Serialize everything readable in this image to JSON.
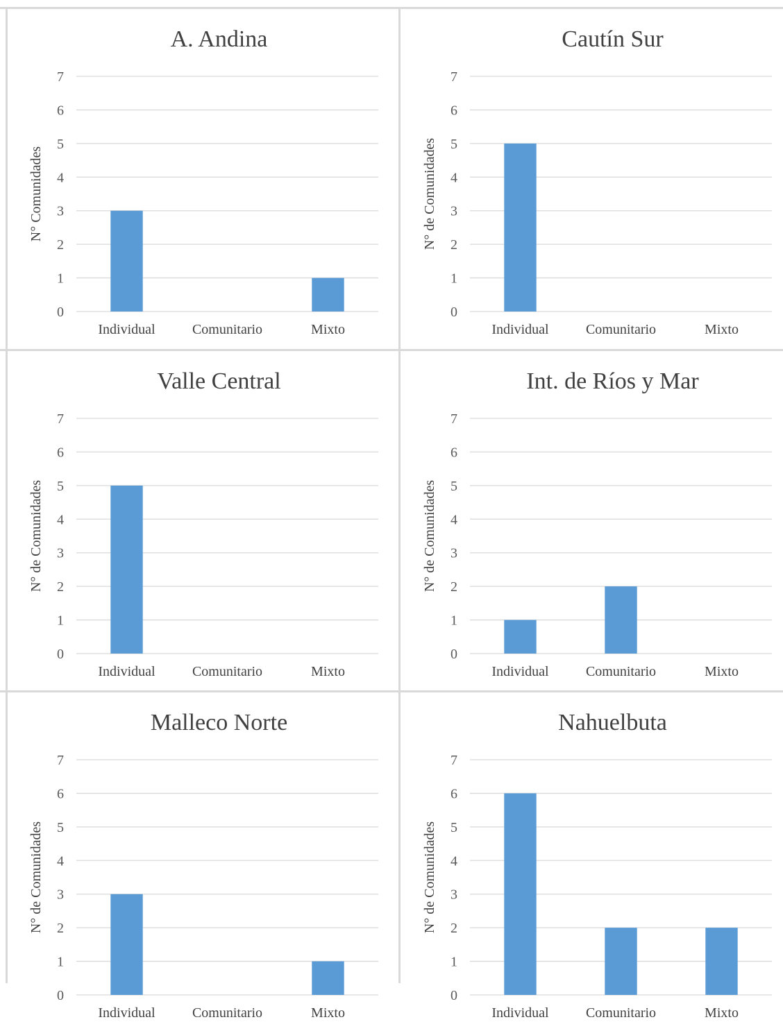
{
  "colors": {
    "bar": "#5b9bd5",
    "grid": "#d9d9d9",
    "border": "#d9d9d9",
    "text": "#404040"
  },
  "chart_data": [
    {
      "type": "bar",
      "title": "A. Andina",
      "ylabel": "N° Comunidades",
      "categories": [
        "Individual",
        "Comunitario",
        "Mixto"
      ],
      "values": [
        3,
        0,
        1
      ],
      "ylim": [
        0,
        7
      ],
      "yticks": [
        "0",
        "1",
        "2",
        "3",
        "4",
        "5",
        "6",
        "7"
      ],
      "grid": true
    },
    {
      "type": "bar",
      "title": "Cautín Sur",
      "ylabel": "N° de Comunidades",
      "categories": [
        "Individual",
        "Comunitario",
        "Mixto"
      ],
      "values": [
        5,
        0,
        0
      ],
      "ylim": [
        0,
        7
      ],
      "yticks": [
        "0",
        "1",
        "2",
        "3",
        "4",
        "5",
        "6",
        "7"
      ],
      "grid": true
    },
    {
      "type": "bar",
      "title": "Valle Central",
      "ylabel": "N° de Comunidades",
      "categories": [
        "Individual",
        "Comunitario",
        "Mixto"
      ],
      "values": [
        5,
        0,
        0
      ],
      "ylim": [
        0,
        7
      ],
      "yticks": [
        "0",
        "1",
        "2",
        "3",
        "4",
        "5",
        "6",
        "7"
      ],
      "grid": true
    },
    {
      "type": "bar",
      "title": "Int. de Ríos y Mar",
      "ylabel": "N° de Comunidades",
      "categories": [
        "Individual",
        "Comunitario",
        "Mixto"
      ],
      "values": [
        1,
        2,
        0
      ],
      "ylim": [
        0,
        7
      ],
      "yticks": [
        "0",
        "1",
        "2",
        "3",
        "4",
        "5",
        "6",
        "7"
      ],
      "grid": true
    },
    {
      "type": "bar",
      "title": "Malleco Norte",
      "ylabel": "N° de Comunidades",
      "categories": [
        "Individual",
        "Comunitario",
        "Mixto"
      ],
      "values": [
        3,
        0,
        1
      ],
      "ylim": [
        0,
        7
      ],
      "yticks": [
        "0",
        "1",
        "2",
        "3",
        "4",
        "5",
        "6",
        "7"
      ],
      "grid": true
    },
    {
      "type": "bar",
      "title": "Nahuelbuta",
      "ylabel": "N° de Comunidades",
      "categories": [
        "Individual",
        "Comunitario",
        "Mixto"
      ],
      "values": [
        6,
        2,
        2
      ],
      "ylim": [
        0,
        7
      ],
      "yticks": [
        "0",
        "1",
        "2",
        "3",
        "4",
        "5",
        "6",
        "7"
      ],
      "grid": true
    }
  ]
}
